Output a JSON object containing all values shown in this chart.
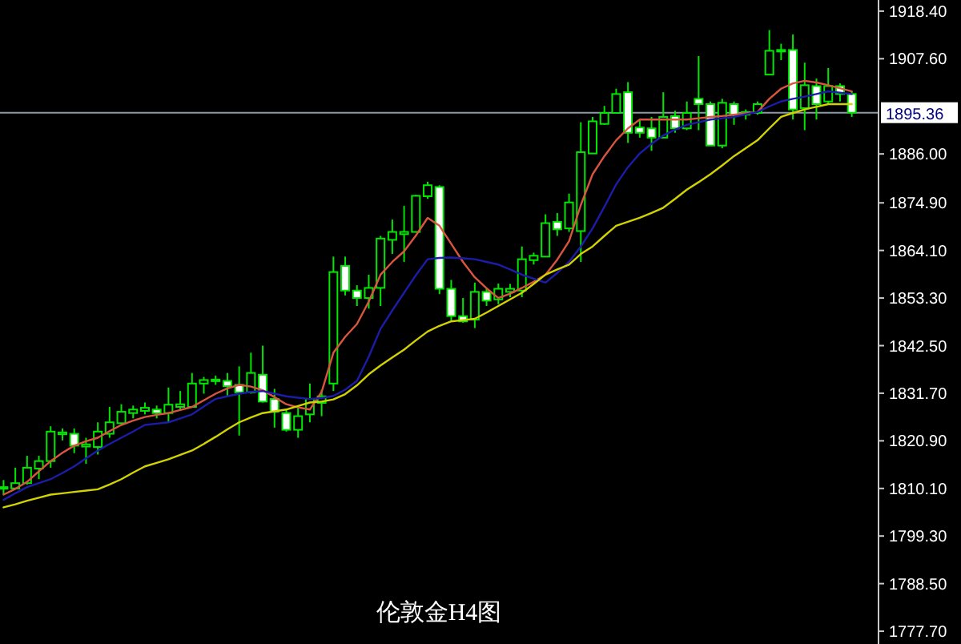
{
  "chart_data": {
    "type": "candlestick",
    "title": "伦敦金H4图",
    "color": "#00e600",
    "categories": [
      null,
      null,
      null,
      null,
      null,
      null,
      null,
      null,
      null,
      null,
      null,
      null,
      null,
      null,
      null,
      null,
      null,
      null,
      null,
      null,
      null,
      null,
      null,
      null,
      null,
      null,
      null,
      null,
      null,
      null,
      null,
      null,
      null,
      null,
      null,
      null,
      null,
      null,
      null,
      null,
      null,
      null,
      null,
      null,
      null,
      null,
      null,
      null,
      null,
      null,
      null,
      null,
      null,
      null,
      null,
      null,
      null,
      null,
      null,
      null,
      null,
      null,
      null,
      null,
      null,
      null,
      null,
      null,
      null,
      null,
      null,
      null,
      null
    ],
    "ohlc": [
      [
        1810.1,
        1812.0,
        1808.7,
        1810.4
      ],
      [
        1810.1,
        1814.8,
        1809.9,
        1811.3
      ],
      [
        1811.3,
        1817.5,
        1811.0,
        1814.8
      ],
      [
        1814.6,
        1817.5,
        1812.2,
        1816.3
      ],
      [
        1816.3,
        1824.2,
        1814.8,
        1823.0
      ],
      [
        1822.4,
        1823.7,
        1821.0,
        1822.8
      ],
      [
        1822.5,
        1823.7,
        1818.1,
        1819.8
      ],
      [
        1819.6,
        1821.6,
        1815.7,
        1820.1
      ],
      [
        1819.5,
        1825.1,
        1817.8,
        1823.0
      ],
      [
        1822.5,
        1828.6,
        1821.6,
        1825.1
      ],
      [
        1824.9,
        1829.2,
        1824.5,
        1827.5
      ],
      [
        1827.2,
        1828.9,
        1826.0,
        1828.0
      ],
      [
        1827.7,
        1829.6,
        1826.9,
        1828.4
      ],
      [
        1828.0,
        1828.9,
        1826.0,
        1827.2
      ],
      [
        1827.2,
        1833.0,
        1825.1,
        1829.1
      ],
      [
        1828.6,
        1832.2,
        1827.7,
        1829.2
      ],
      [
        1828.6,
        1836.3,
        1828.4,
        1833.9
      ],
      [
        1833.9,
        1835.4,
        1831.6,
        1834.7
      ],
      [
        1834.5,
        1835.7,
        1833.6,
        1834.8
      ],
      [
        1834.5,
        1836.3,
        1831.0,
        1833.3
      ],
      [
        1833.6,
        1837.8,
        1822.1,
        1831.9
      ],
      [
        1831.9,
        1840.9,
        1831.6,
        1836.3
      ],
      [
        1835.9,
        1842.5,
        1829.6,
        1829.8
      ],
      [
        1830.4,
        1832.7,
        1823.9,
        1827.5
      ],
      [
        1827.2,
        1828.0,
        1823.0,
        1823.4
      ],
      [
        1823.4,
        1828.6,
        1821.6,
        1826.5
      ],
      [
        1826.9,
        1833.9,
        1825.1,
        1830.4
      ],
      [
        1829.5,
        1832.5,
        1826.5,
        1831.0
      ],
      [
        1833.9,
        1862.7,
        1832.2,
        1859.2
      ],
      [
        1860.6,
        1862.7,
        1853.9,
        1855.0
      ],
      [
        1855.0,
        1856.2,
        1851.5,
        1853.3
      ],
      [
        1853.3,
        1858.6,
        1850.9,
        1855.6
      ],
      [
        1855.6,
        1867.4,
        1851.5,
        1866.8
      ],
      [
        1866.5,
        1871.1,
        1863.3,
        1868.3
      ],
      [
        1867.8,
        1874.2,
        1861.5,
        1868.3
      ],
      [
        1868.3,
        1876.7,
        1868.3,
        1876.5
      ],
      [
        1876.4,
        1879.7,
        1875.8,
        1878.9
      ],
      [
        1878.5,
        1878.9,
        1854.2,
        1855.4
      ],
      [
        1855.4,
        1857.4,
        1848.0,
        1849.2
      ],
      [
        1849.2,
        1853.3,
        1847.7,
        1848.0
      ],
      [
        1848.4,
        1856.8,
        1846.5,
        1854.7
      ],
      [
        1854.7,
        1855.6,
        1851.5,
        1852.7
      ],
      [
        1853.0,
        1856.6,
        1851.9,
        1855.4
      ],
      [
        1854.7,
        1856.5,
        1853.5,
        1855.4
      ],
      [
        1855.0,
        1865.0,
        1853.5,
        1862.1
      ],
      [
        1861.9,
        1863.6,
        1860.9,
        1862.9
      ],
      [
        1862.7,
        1872.3,
        1862.7,
        1870.3
      ],
      [
        1870.6,
        1872.6,
        1867.4,
        1868.9
      ],
      [
        1869.1,
        1877.0,
        1868.3,
        1875.0
      ],
      [
        1868.5,
        1893.2,
        1861.5,
        1886.4
      ],
      [
        1886.1,
        1894.4,
        1886.1,
        1893.4
      ],
      [
        1892.8,
        1896.9,
        1892.6,
        1895.3
      ],
      [
        1895.3,
        1900.8,
        1895.3,
        1899.6
      ],
      [
        1900.0,
        1902.3,
        1888.5,
        1890.8
      ],
      [
        1892.0,
        1893.8,
        1889.7,
        1890.8
      ],
      [
        1891.8,
        1894.4,
        1886.7,
        1889.7
      ],
      [
        1889.7,
        1900.0,
        1889.7,
        1894.4
      ],
      [
        1894.6,
        1895.8,
        1890.8,
        1891.8
      ],
      [
        1891.8,
        1897.9,
        1891.4,
        1895.3
      ],
      [
        1898.5,
        1908.2,
        1891.4,
        1897.3
      ],
      [
        1897.3,
        1897.9,
        1887.9,
        1887.9
      ],
      [
        1887.9,
        1898.5,
        1887.3,
        1897.6
      ],
      [
        1897.3,
        1897.9,
        1892.6,
        1894.9
      ],
      [
        1894.9,
        1896.1,
        1893.8,
        1895.5
      ],
      [
        1895.3,
        1897.9,
        1894.9,
        1897.3
      ],
      [
        1904.0,
        1914.1,
        1904.0,
        1909.4
      ],
      [
        1909.4,
        1911.0,
        1907.3,
        1909.6
      ],
      [
        1909.6,
        1913.1,
        1893.8,
        1896.1
      ],
      [
        1896.4,
        1906.7,
        1891.4,
        1901.6
      ],
      [
        1901.4,
        1903.1,
        1893.8,
        1897.3
      ],
      [
        1897.9,
        1905.5,
        1897.3,
        1901.4
      ],
      [
        1901.4,
        1902.0,
        1897.9,
        1899.6
      ],
      [
        1899.6,
        1900.2,
        1894.4,
        1895.36
      ]
    ],
    "series": [
      {
        "type": "line",
        "color": "#d9553f",
        "values": [
          1808.7,
          1810.0,
          1811.6,
          1814.0,
          1816.3,
          1818.2,
          1819.8,
          1820.8,
          1821.6,
          1823.1,
          1824.5,
          1825.5,
          1826.3,
          1826.8,
          1827.2,
          1827.9,
          1828.6,
          1830.1,
          1831.6,
          1832.8,
          1833.6,
          1833.2,
          1832.4,
          1830.8,
          1829.2,
          1828.5,
          1828.0,
          1832.0,
          1840.9,
          1844.5,
          1847.4,
          1852.5,
          1858.6,
          1861.5,
          1863.9,
          1867.5,
          1871.5,
          1869.7,
          1865.6,
          1861.5,
          1858.0,
          1855.5,
          1853.3,
          1854.3,
          1855.6,
          1857.0,
          1858.6,
          1862.0,
          1866.2,
          1874.4,
          1881.4,
          1885.5,
          1889.1,
          1891.8,
          1893.8,
          1893.8,
          1893.8,
          1893.8,
          1893.8,
          1894.1,
          1894.4,
          1894.6,
          1894.9,
          1895.2,
          1895.5,
          1898.5,
          1900.8,
          1902.0,
          1902.6,
          1902.2,
          1901.6,
          1900.9,
          1900.2
        ]
      },
      {
        "type": "line",
        "color": "#1c1ca8",
        "values": [
          1807.5,
          1809.0,
          1810.4,
          1811.3,
          1812.2,
          1813.6,
          1815.1,
          1816.9,
          1818.7,
          1820.2,
          1821.6,
          1823.0,
          1824.5,
          1824.8,
          1825.1,
          1826.0,
          1826.9,
          1828.7,
          1830.4,
          1831.0,
          1831.6,
          1832.0,
          1832.2,
          1831.6,
          1831.0,
          1830.7,
          1830.4,
          1830.6,
          1831.1,
          1832.5,
          1834.5,
          1840.0,
          1846.3,
          1850.5,
          1854.5,
          1858.5,
          1862.1,
          1862.4,
          1862.5,
          1862.3,
          1862.1,
          1861.5,
          1860.9,
          1859.8,
          1858.6,
          1857.7,
          1856.8,
          1859.0,
          1861.5,
          1865.0,
          1869.1,
          1874.0,
          1879.1,
          1883.0,
          1886.1,
          1888.3,
          1890.2,
          1891.5,
          1892.6,
          1893.2,
          1893.8,
          1894.1,
          1894.4,
          1895.0,
          1895.5,
          1896.8,
          1897.9,
          1898.5,
          1899.0,
          1899.6,
          1900.2,
          1899.9,
          1899.6
        ]
      },
      {
        "type": "line",
        "color": "#d2d200",
        "values": [
          1805.8,
          1806.5,
          1807.3,
          1808.0,
          1808.7,
          1809.0,
          1809.3,
          1809.6,
          1809.9,
          1811.0,
          1812.2,
          1813.7,
          1815.1,
          1815.9,
          1816.7,
          1817.7,
          1818.7,
          1820.2,
          1821.8,
          1823.5,
          1825.1,
          1826.2,
          1827.2,
          1827.6,
          1828.0,
          1828.8,
          1829.6,
          1829.8,
          1830.3,
          1831.5,
          1833.5,
          1836.0,
          1838.0,
          1839.8,
          1841.6,
          1843.7,
          1845.7,
          1847.0,
          1848.0,
          1848.3,
          1848.6,
          1850.0,
          1851.5,
          1853.0,
          1854.5,
          1856.5,
          1858.6,
          1859.8,
          1860.9,
          1863.3,
          1865.0,
          1867.4,
          1869.7,
          1870.6,
          1871.5,
          1872.6,
          1873.8,
          1875.8,
          1877.9,
          1879.6,
          1881.4,
          1883.4,
          1885.5,
          1887.3,
          1889.1,
          1891.8,
          1894.4,
          1895.3,
          1896.1,
          1896.7,
          1897.3,
          1897.3,
          1897.3
        ]
      }
    ],
    "ylim": [
      1774.8,
      1920.2
    ],
    "yticks": [
      {
        "value": 1918.4,
        "label": "1918.40"
      },
      {
        "value": 1907.6,
        "label": "1907.60"
      },
      {
        "value": 1886.0,
        "label": "1886.00"
      },
      {
        "value": 1874.9,
        "label": "1874.90"
      },
      {
        "value": 1864.1,
        "label": "1864.10"
      },
      {
        "value": 1853.3,
        "label": "1853.30"
      },
      {
        "value": 1842.5,
        "label": "1842.50"
      },
      {
        "value": 1831.7,
        "label": "1831.70"
      },
      {
        "value": 1820.9,
        "label": "1820.90"
      },
      {
        "value": 1810.1,
        "label": "1810.10"
      },
      {
        "value": 1799.3,
        "label": "1799.30"
      },
      {
        "value": 1788.5,
        "label": "1788.50"
      },
      {
        "value": 1777.7,
        "label": "1777.70"
      }
    ],
    "ref_lines": [
      {
        "axis": "y",
        "value": 1895.36,
        "label": "1895.36",
        "color": "#8c9aa6"
      }
    ],
    "grid": false
  }
}
